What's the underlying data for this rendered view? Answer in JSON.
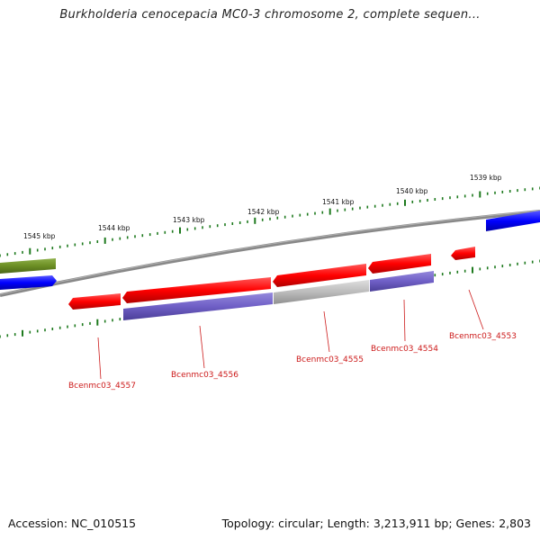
{
  "header": {
    "title": "Burkholderia cenocepacia MC0-3 chromosome 2, complete sequen..."
  },
  "footer": {
    "accession": "Accession: NC_010515",
    "summary": "Topology: circular; Length: 3,213,911 bp; Genes: 2,803"
  },
  "scale": {
    "labels": [
      "1545 kbp",
      "1544 kbp",
      "1543 kbp",
      "1542 kbp",
      "1541 kbp",
      "1540 kbp",
      "1539 kbp"
    ]
  },
  "genes": {
    "labels": [
      "Bcenmc03_4557",
      "Bcenmc03_4556",
      "Bcenmc03_4555",
      "Bcenmc03_4554",
      "Bcenmc03_4553"
    ]
  },
  "colors": {
    "background": "#ffffff",
    "backbone": "#808080",
    "forward_cds": "#0000ff",
    "reverse_cds": "#ff0000",
    "feature_olive": "#6b8e23",
    "feature_purple": "#6f5fc6",
    "feature_gray": "#b4b4b4",
    "tick": "#1e7a1e",
    "gene_label": "#cc1a1a"
  }
}
